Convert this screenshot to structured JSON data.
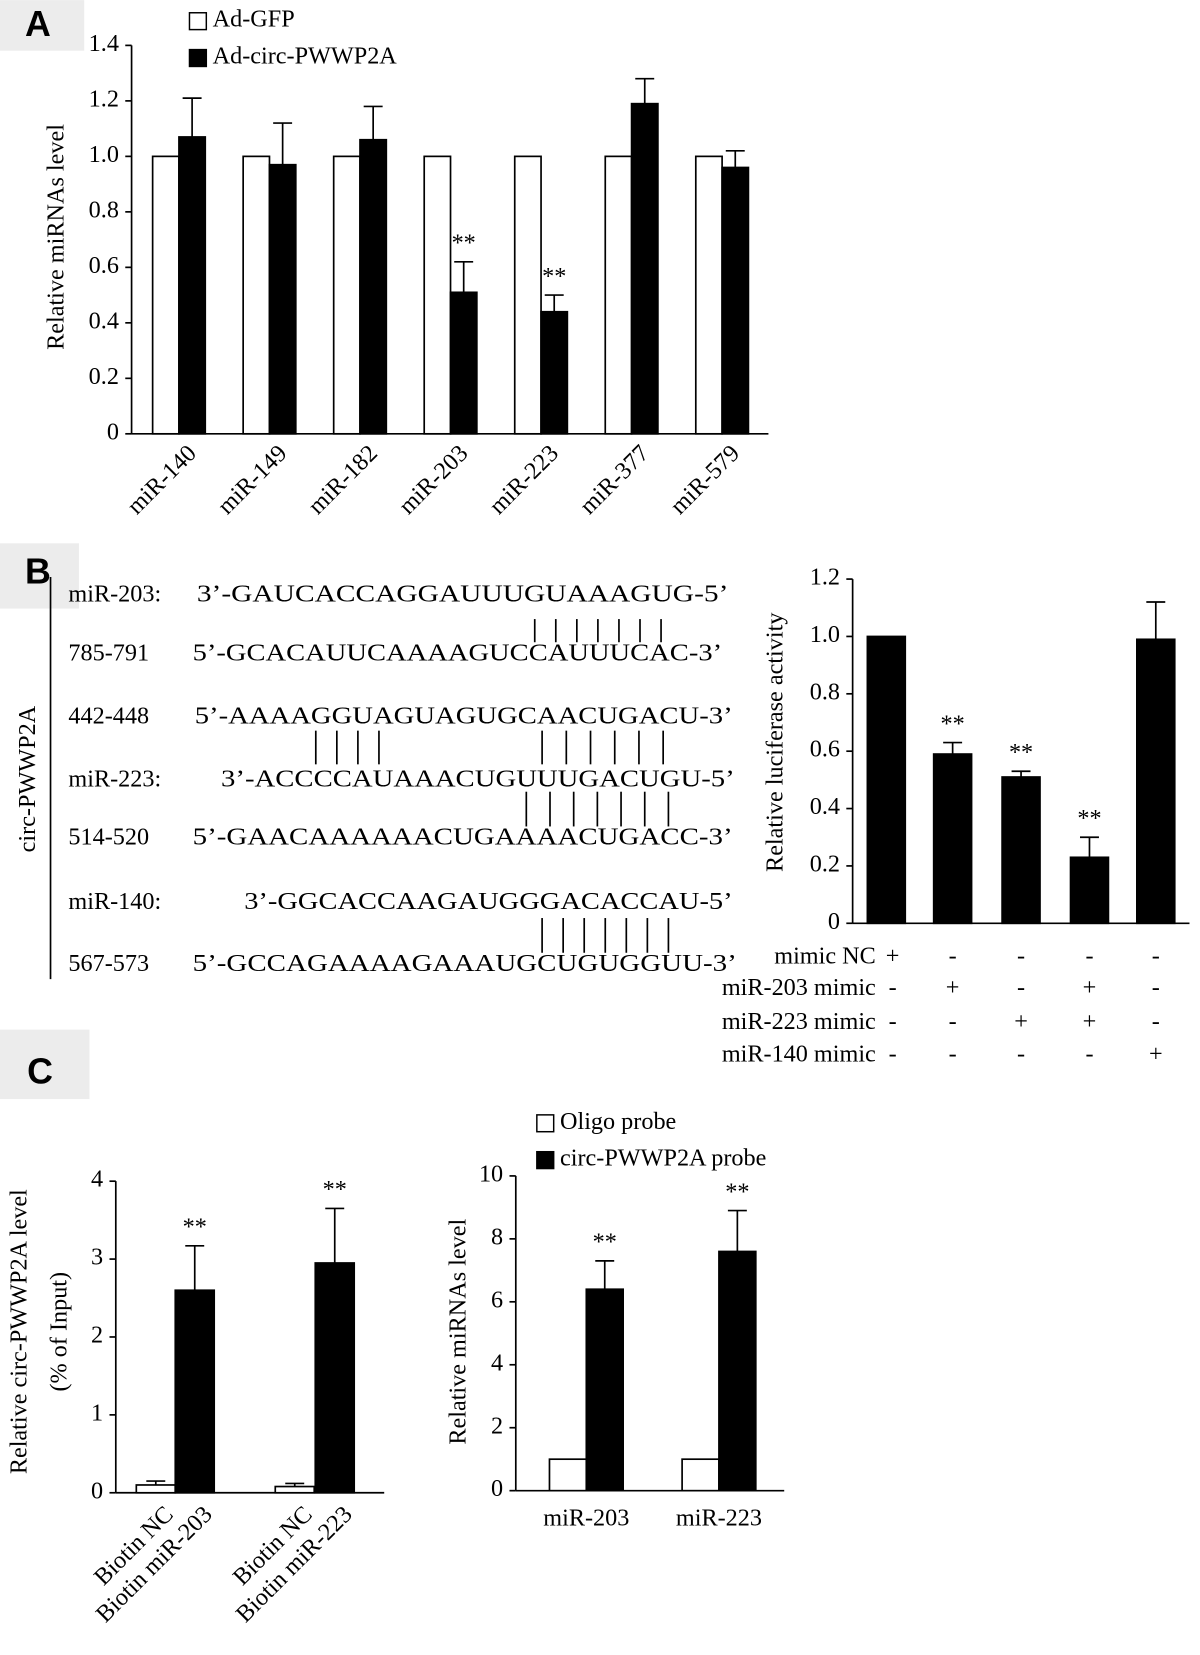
{
  "panel_labels": [
    "A",
    "B",
    "C"
  ],
  "alignment": {
    "group_label": "circ-PWWP2A",
    "rows": [
      {
        "label": "miR-203:",
        "sequence": "3’-GAUCACCAGGAUUUGUAAAGUG-5’"
      },
      {
        "label": "785-791",
        "sequence": "5’-GCACAUUCAAAAGUCCAUUUCAC-3’"
      },
      {
        "label": "442-448",
        "sequence": "5’-AAAAGGUAGUAGUGCAACUGACU-3’"
      },
      {
        "label": "miR-223:",
        "sequence": "3’-ACCCCAUAAACUGUUUGACUGU-5’"
      },
      {
        "label": "514-520",
        "sequence": "5’-GAACAAAAAACUGAAAACUGACC-3’"
      },
      {
        "label": "miR-140:",
        "sequence": "3’-GGCACCAAGAUGGGACACCAU-5’"
      },
      {
        "label": "567-573",
        "sequence": "5’-GCCAGAAAAGAAAUGCUGUGGUU-3’"
      }
    ]
  },
  "chart_data": [
    {
      "type": "bar",
      "ylabel": "Relative miRNAs level",
      "categories": [
        "miR-140",
        "miR-149",
        "miR-182",
        "miR-203",
        "miR-223",
        "miR-377",
        "miR-579"
      ],
      "series": [
        {
          "name": "Ad-GFP",
          "color": "#ffffff",
          "values": [
            1,
            1,
            1,
            1,
            1,
            1,
            1
          ]
        },
        {
          "name": "Ad-circ-PWWP2A",
          "color": "#000000",
          "values": [
            1.07,
            0.97,
            1.06,
            0.51,
            0.44,
            1.19,
            0.96
          ],
          "errors": [
            0.14,
            0.15,
            0.12,
            0.11,
            0.06,
            0.09,
            0.06
          ],
          "annotations": [
            null,
            null,
            null,
            "**",
            "**",
            null,
            null
          ]
        }
      ],
      "ylim": [
        0,
        1.4
      ],
      "yticks": [
        0,
        0.2,
        0.4,
        0.6,
        0.8,
        {
          "value": 1,
          "label": "1.0"
        },
        1.2,
        1.4
      ],
      "legend": "top-left"
    },
    {
      "type": "bar",
      "ylabel": "Relative luciferase activity",
      "categories": [
        null,
        null,
        null,
        null,
        null
      ],
      "series": [
        {
          "color": "#000000",
          "values": [
            1,
            0.59,
            0.51,
            0.23,
            0.99
          ],
          "errors": [
            null,
            0.04,
            0.02,
            0.07,
            0.13
          ],
          "annotations": [
            null,
            "**",
            "**",
            "**",
            null
          ]
        }
      ],
      "ylim": [
        0,
        1.2
      ],
      "yticks": [
        0,
        0.2,
        0.4,
        0.6,
        0.8,
        {
          "value": 1,
          "label": "1.0"
        },
        1.2
      ],
      "treatments": [
        {
          "name": "mimic NC",
          "signs": [
            "+",
            "-",
            "-",
            "-",
            "-"
          ]
        },
        {
          "name": "miR-203 mimic",
          "signs": [
            "-",
            "+",
            "-",
            "+",
            "-"
          ]
        },
        {
          "name": "miR-223 mimic",
          "signs": [
            "-",
            "-",
            "+",
            "+",
            "-"
          ]
        },
        {
          "name": "miR-140 mimic",
          "signs": [
            "-",
            "-",
            "-",
            "-",
            "+"
          ]
        }
      ]
    },
    {
      "type": "bar",
      "ylabel": [
        "Relative circ-PWWP2A level",
        "(% of Input)"
      ],
      "categories": [
        "Biotin NC",
        "Biotin miR-203",
        "Biotin NC",
        "Biotin miR-223"
      ],
      "colors": [
        "#ffffff",
        "#000000",
        "#ffffff",
        "#000000"
      ],
      "values": [
        0.1,
        2.6,
        0.08,
        2.95
      ],
      "errors": [
        0.05,
        0.57,
        0.04,
        0.7
      ],
      "annotations": [
        null,
        "**",
        null,
        "**"
      ],
      "ylim": [
        0,
        4
      ],
      "yticks": [
        0,
        1,
        2,
        3,
        4
      ]
    },
    {
      "type": "bar",
      "ylabel": "Relative miRNAs level",
      "categories": [
        "miR-203",
        "miR-223"
      ],
      "series": [
        {
          "name": "Oligo probe",
          "color": "#ffffff",
          "values": [
            1,
            1
          ]
        },
        {
          "name": "circ-PWWP2A probe",
          "color": "#000000",
          "values": [
            6.4,
            7.6
          ],
          "errors": [
            0.9,
            1.3
          ],
          "annotations": [
            "**",
            "**"
          ]
        }
      ],
      "ylim": [
        0,
        10
      ],
      "yticks": [
        0,
        2,
        4,
        6,
        8,
        10
      ],
      "legend": "top-left"
    }
  ]
}
